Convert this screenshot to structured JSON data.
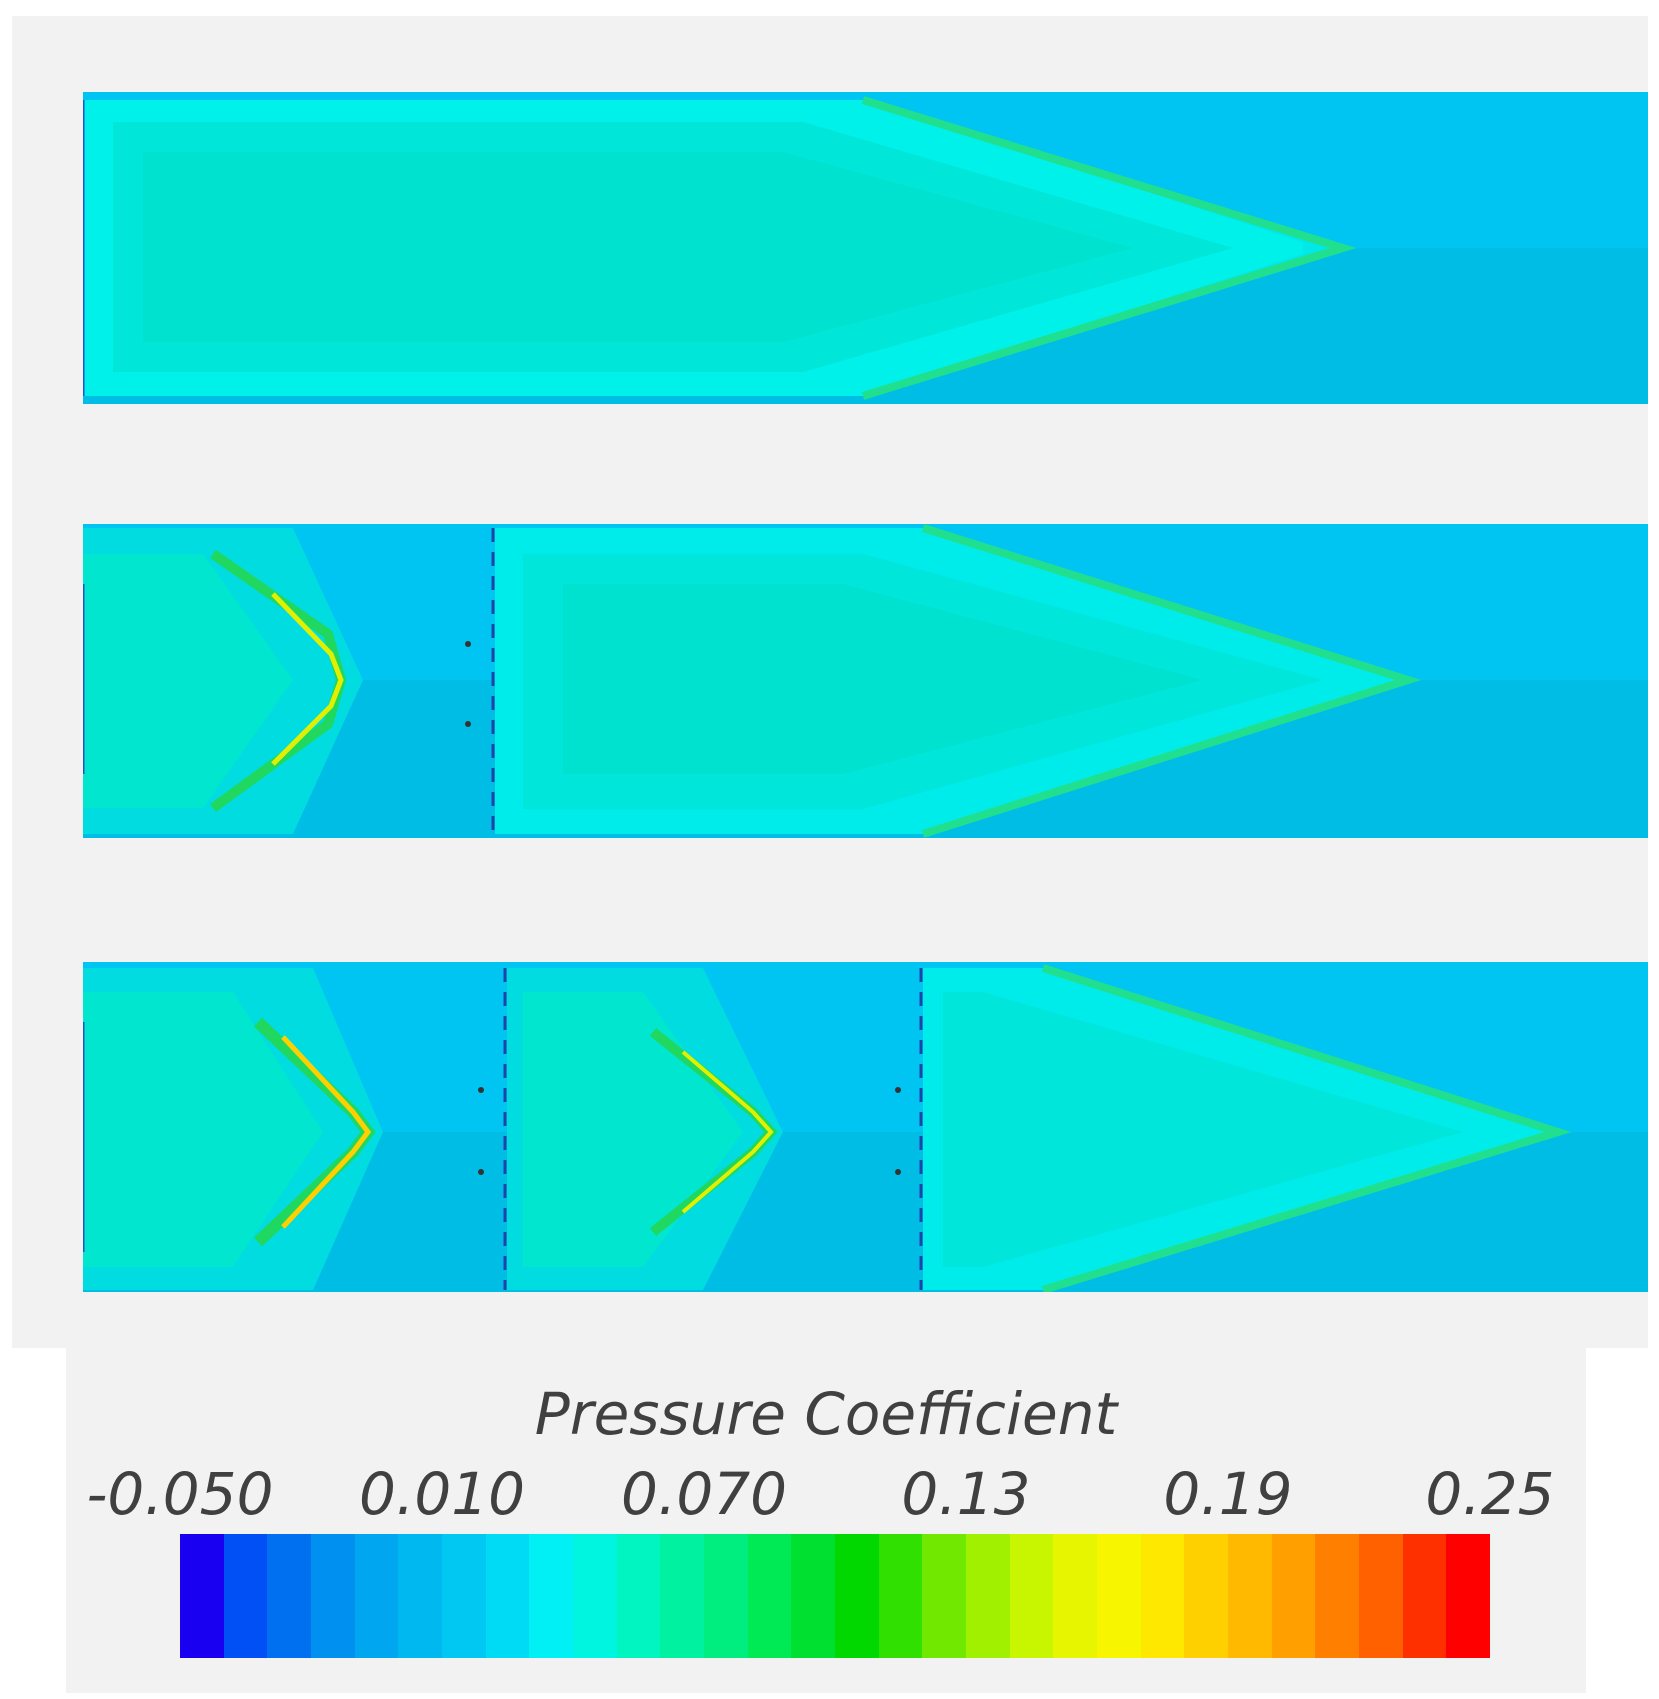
{
  "figure": {
    "panels": [
      {
        "id": "panel-1",
        "description_note": ""
      },
      {
        "id": "panel-2"
      },
      {
        "id": "panel-3"
      }
    ]
  },
  "legend": {
    "title": "Pressure Coefficient",
    "ticks": [
      "-0.050",
      "0.010",
      "0.070",
      "0.13",
      "0.19",
      "0.25"
    ],
    "min": -0.05,
    "max": 0.25,
    "colors": [
      "#1a00f0",
      "#0050f5",
      "#0070f0",
      "#0090f0",
      "#00a6f0",
      "#00b8f0",
      "#00c8f2",
      "#00dbf5",
      "#00f0f5",
      "#00f5e0",
      "#00f5c0",
      "#00f2a0",
      "#00ee80",
      "#00ea55",
      "#00e030",
      "#00d800",
      "#30e000",
      "#70e800",
      "#a0f000",
      "#c8f500",
      "#e8f500",
      "#f8f500",
      "#ffe800",
      "#ffd000",
      "#ffba00",
      "#ffa000",
      "#ff8000",
      "#ff6000",
      "#ff3000",
      "#ff0000"
    ]
  }
}
